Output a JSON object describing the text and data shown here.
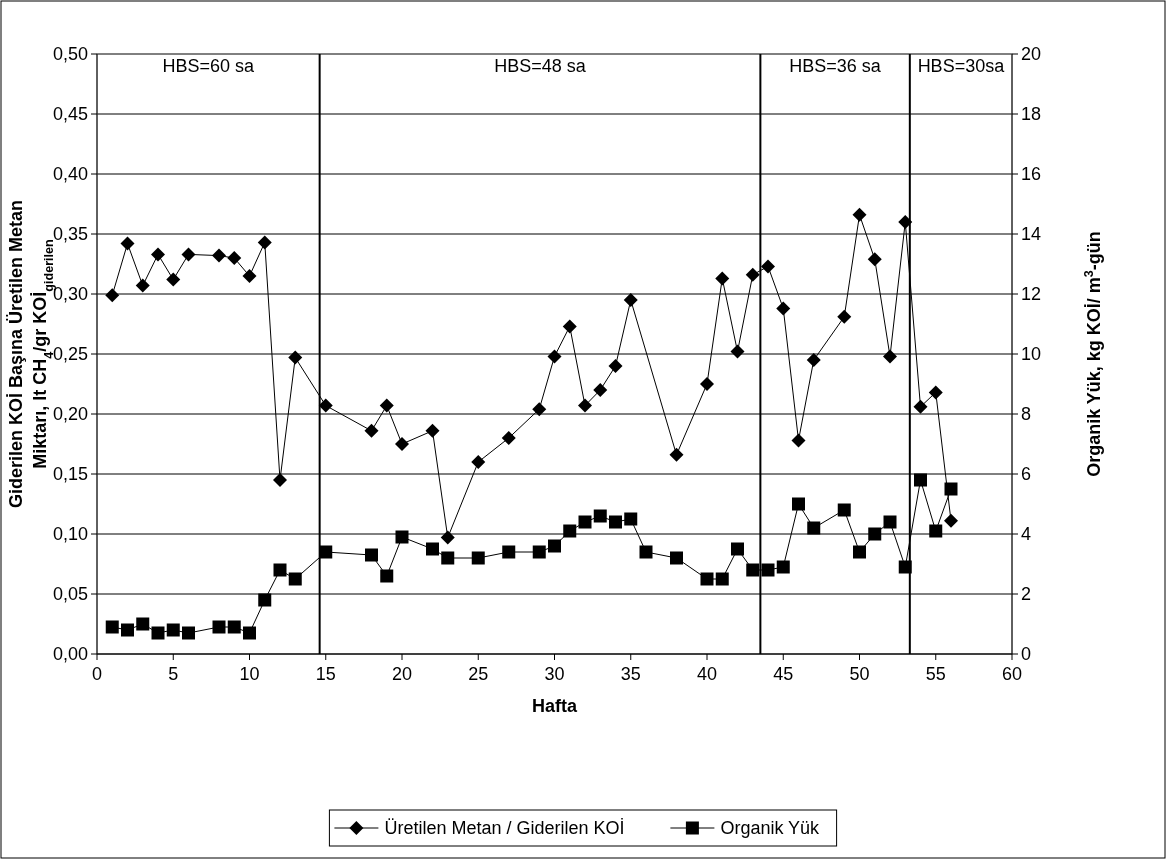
{
  "chart_data": {
    "type": "line",
    "xlabel": "Hafta",
    "ylabel": "Giderilen KOİ Başına Üretilen Metan\nMiktarı, lt CH$_{4}$/gr KOİ$_{giderilen}$",
    "y2label": "Organik Yük, kg KOİ/ m$^{3}$-gün",
    "xlim": [
      0,
      60
    ],
    "xticks": [
      0,
      5,
      10,
      15,
      20,
      25,
      30,
      35,
      40,
      45,
      50,
      55,
      60
    ],
    "ylim": [
      0,
      0.5
    ],
    "yticks": [
      {
        "value": 0,
        "label": "0,00"
      },
      {
        "value": 0.05,
        "label": "0,05"
      },
      {
        "value": 0.1,
        "label": "0,10"
      },
      {
        "value": 0.15,
        "label": "0,15"
      },
      {
        "value": 0.2,
        "label": "0,20"
      },
      {
        "value": 0.25,
        "label": "0,25"
      },
      {
        "value": 0.3,
        "label": "0,30"
      },
      {
        "value": 0.35,
        "label": "0,35"
      },
      {
        "value": 0.4,
        "label": "0,40"
      },
      {
        "value": 0.45,
        "label": "0,45"
      },
      {
        "value": 0.5,
        "label": "0,50"
      }
    ],
    "y2lim": [
      0,
      20
    ],
    "y2ticks": [
      0,
      2,
      4,
      6,
      8,
      10,
      12,
      14,
      16,
      18,
      20
    ],
    "grid": "y",
    "legend": "bottom",
    "line_style": "solid",
    "series": [
      {
        "name": "Üretilen Metan / Giderilen KOİ",
        "color": "#000000",
        "marker": "diamond",
        "x": [
          1,
          2,
          3,
          4,
          5,
          6,
          8,
          9,
          10,
          11,
          12,
          13,
          15,
          18,
          19,
          20,
          22,
          23,
          25,
          27,
          29,
          30,
          31,
          32,
          33,
          34,
          35,
          38,
          40,
          41,
          42,
          43,
          44,
          45,
          46,
          47,
          49,
          50,
          51,
          52,
          53,
          54,
          55,
          56
        ],
        "values": [
          0.299,
          0.342,
          0.307,
          0.333,
          0.312,
          0.333,
          0.332,
          0.33,
          0.315,
          0.343,
          0.145,
          0.247,
          0.207,
          0.186,
          0.207,
          0.175,
          0.186,
          0.097,
          0.16,
          0.18,
          0.204,
          0.248,
          0.273,
          0.207,
          0.22,
          0.24,
          0.295,
          0.166,
          0.225,
          0.313,
          0.252,
          0.316,
          0.323,
          0.288,
          0.178,
          0.245,
          0.281,
          0.366,
          0.329,
          0.248,
          0.36,
          0.206,
          0.218,
          0.111
        ]
      },
      {
        "name": "Organik Yük",
        "color": "#000000",
        "marker": "square",
        "axis": "y2",
        "x": [
          1,
          2,
          3,
          4,
          5,
          6,
          8,
          9,
          10,
          11,
          12,
          13,
          15,
          18,
          19,
          20,
          22,
          23,
          25,
          27,
          29,
          30,
          31,
          32,
          33,
          34,
          35,
          36,
          38,
          40,
          41,
          42,
          43,
          44,
          45,
          46,
          47,
          49,
          50,
          51,
          52,
          53,
          54,
          55,
          56
        ],
        "values": [
          0.9,
          0.8,
          1.0,
          0.7,
          0.8,
          0.7,
          0.9,
          0.9,
          0.7,
          1.8,
          2.8,
          2.5,
          3.4,
          3.3,
          2.6,
          3.9,
          3.5,
          3.2,
          3.2,
          3.4,
          3.4,
          3.6,
          4.1,
          4.4,
          4.6,
          4.4,
          4.5,
          3.4,
          3.2,
          2.5,
          2.5,
          3.5,
          2.8,
          2.8,
          2.9,
          5.0,
          4.2,
          4.8,
          3.4,
          4.0,
          4.4,
          2.9,
          5.8,
          4.1,
          5.5
        ]
      }
    ],
    "ref_lines": [
      {
        "axis": "x",
        "value": 14.6,
        "color": "#000000"
      },
      {
        "axis": "x",
        "value": 43.5,
        "color": "#000000"
      },
      {
        "axis": "x",
        "value": 53.3,
        "color": "#000000"
      }
    ],
    "annotations": [
      "HBS=60 sa",
      "HBS=48 sa",
      "HBS=36 sa",
      "HBS=30sa"
    ]
  }
}
